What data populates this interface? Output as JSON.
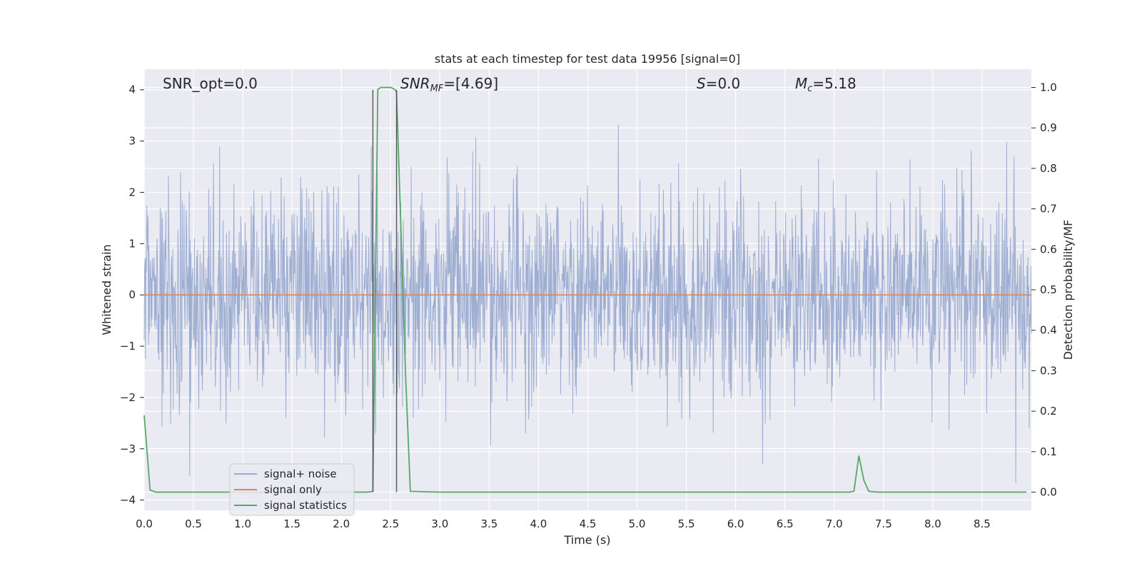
{
  "chart_data": {
    "type": "line",
    "title": "stats at each timestep for test data 19956 [signal=0]",
    "xlabel": "Time (s)",
    "ylabel": "Whitened strain",
    "ylabel_right": "Detection probability/MF",
    "xlim": [
      0.0,
      9.0
    ],
    "ylim": [
      -4.2,
      4.4
    ],
    "ylim_right": [
      -0.045,
      1.045
    ],
    "x_ticks": [
      "0.0",
      "0.5",
      "1.0",
      "1.5",
      "2.0",
      "2.5",
      "3.0",
      "3.5",
      "4.0",
      "4.5",
      "5.0",
      "5.5",
      "6.0",
      "6.5",
      "7.0",
      "7.5",
      "8.0",
      "8.5"
    ],
    "x_tick_values": [
      0.0,
      0.5,
      1.0,
      1.5,
      2.0,
      2.5,
      3.0,
      3.5,
      4.0,
      4.5,
      5.0,
      5.5,
      6.0,
      6.5,
      7.0,
      7.5,
      8.0,
      8.5
    ],
    "y_ticks": [
      "−4",
      "−3",
      "−2",
      "−1",
      "0",
      "1",
      "2",
      "3",
      "4"
    ],
    "y_tick_values": [
      -4,
      -3,
      -2,
      -1,
      0,
      1,
      2,
      3,
      4
    ],
    "y_ticks_right": [
      "0.0",
      "0.1",
      "0.2",
      "0.3",
      "0.4",
      "0.5",
      "0.6",
      "0.7",
      "0.8",
      "0.9",
      "1.0"
    ],
    "y_tick_values_right": [
      0.0,
      0.1,
      0.2,
      0.3,
      0.4,
      0.5,
      0.6,
      0.7,
      0.8,
      0.9,
      1.0
    ],
    "grid": true,
    "legend_position": "lower-left",
    "annotations": [
      {
        "text": "SNR_opt=0.0"
      },
      {
        "text": "SNR_MF=[4.69]"
      },
      {
        "text": "S=0.0"
      },
      {
        "text": "M_c=5.18"
      }
    ],
    "vlines": [
      2.32,
      2.56
    ],
    "vline_color": "#555555",
    "series": [
      {
        "name": "signal+ noise",
        "color": "#9aabd0",
        "axis": "left",
        "noise": {
          "t_start": 0.0,
          "t_end": 9.0,
          "sigma": 1.0,
          "samples": 2048
        }
      },
      {
        "name": "signal only",
        "color": "#dd8452",
        "axis": "left",
        "x": [
          0.0,
          9.0
        ],
        "y": [
          0.0,
          0.0
        ]
      },
      {
        "name": "signal statistics",
        "color": "#55a868",
        "axis": "right",
        "x": [
          0.0,
          0.06,
          0.12,
          0.5,
          1.0,
          2.0,
          2.25,
          2.3,
          2.32,
          2.37,
          2.4,
          2.45,
          2.5,
          2.53,
          2.56,
          2.65,
          2.7,
          3.0,
          4.0,
          5.0,
          6.0,
          7.0,
          7.15,
          7.2,
          7.25,
          7.3,
          7.35,
          7.45,
          7.5,
          8.0,
          8.95
        ],
        "y": [
          0.19,
          0.005,
          0.0,
          0.0,
          0.0,
          0.0,
          0.0,
          0.001,
          0.002,
          0.995,
          1.0,
          1.0,
          1.0,
          0.997,
          0.99,
          0.3,
          0.002,
          0.0,
          0.0,
          0.0,
          0.0,
          0.0,
          0.0,
          0.002,
          0.09,
          0.03,
          0.002,
          0.0,
          0.0,
          0.0,
          0.0
        ]
      }
    ],
    "colors": {
      "plot_bg": "#eaeaf2",
      "grid": "#ffffff",
      "text": "#262626"
    }
  }
}
